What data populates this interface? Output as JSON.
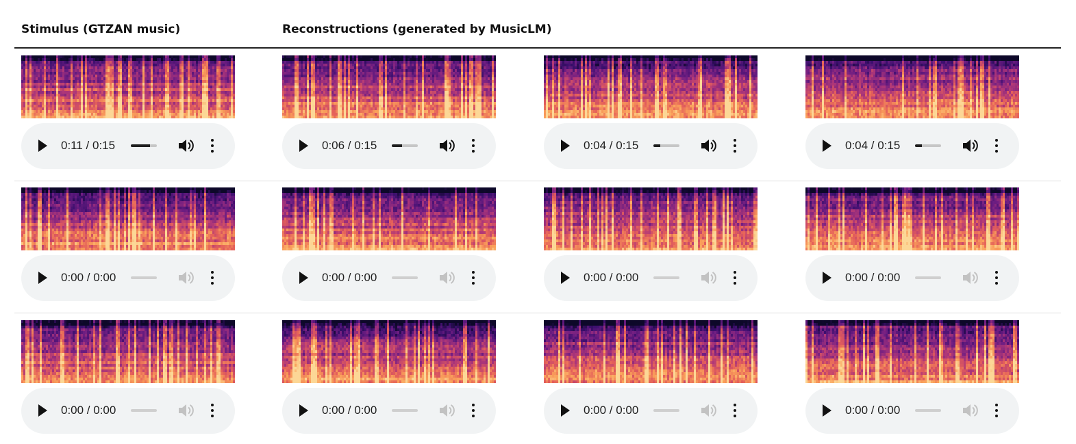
{
  "headers": {
    "stimulus": "Stimulus (GTZAN music)",
    "reconstructions": "Reconstructions (generated by MusicLM)"
  },
  "icons": {
    "play": "play-icon",
    "volume": "volume-icon",
    "more": "more-options-icon"
  },
  "colors": {
    "spectrogram_low": "#0d0829",
    "spectrogram_mid": "#8b2a7e",
    "spectrogram_high": "#fcc27a",
    "player_bg": "#f1f3f4"
  },
  "rows": [
    {
      "players": [
        {
          "time": "0:11 / 0:15",
          "progress": 0.73,
          "active": true
        },
        {
          "time": "0:06 / 0:15",
          "progress": 0.4,
          "active": true
        },
        {
          "time": "0:04 / 0:15",
          "progress": 0.27,
          "active": true
        },
        {
          "time": "0:04 / 0:15",
          "progress": 0.27,
          "active": true
        }
      ]
    },
    {
      "players": [
        {
          "time": "0:00 / 0:00",
          "progress": 0,
          "active": false
        },
        {
          "time": "0:00 / 0:00",
          "progress": 0,
          "active": false
        },
        {
          "time": "0:00 / 0:00",
          "progress": 0,
          "active": false
        },
        {
          "time": "0:00 / 0:00",
          "progress": 0,
          "active": false
        }
      ]
    },
    {
      "players": [
        {
          "time": "0:00 / 0:00",
          "progress": 0,
          "active": false
        },
        {
          "time": "0:00 / 0:00",
          "progress": 0,
          "active": false
        },
        {
          "time": "0:00 / 0:00",
          "progress": 0,
          "active": false
        },
        {
          "time": "0:00 / 0:00",
          "progress": 0,
          "active": false
        }
      ]
    }
  ]
}
